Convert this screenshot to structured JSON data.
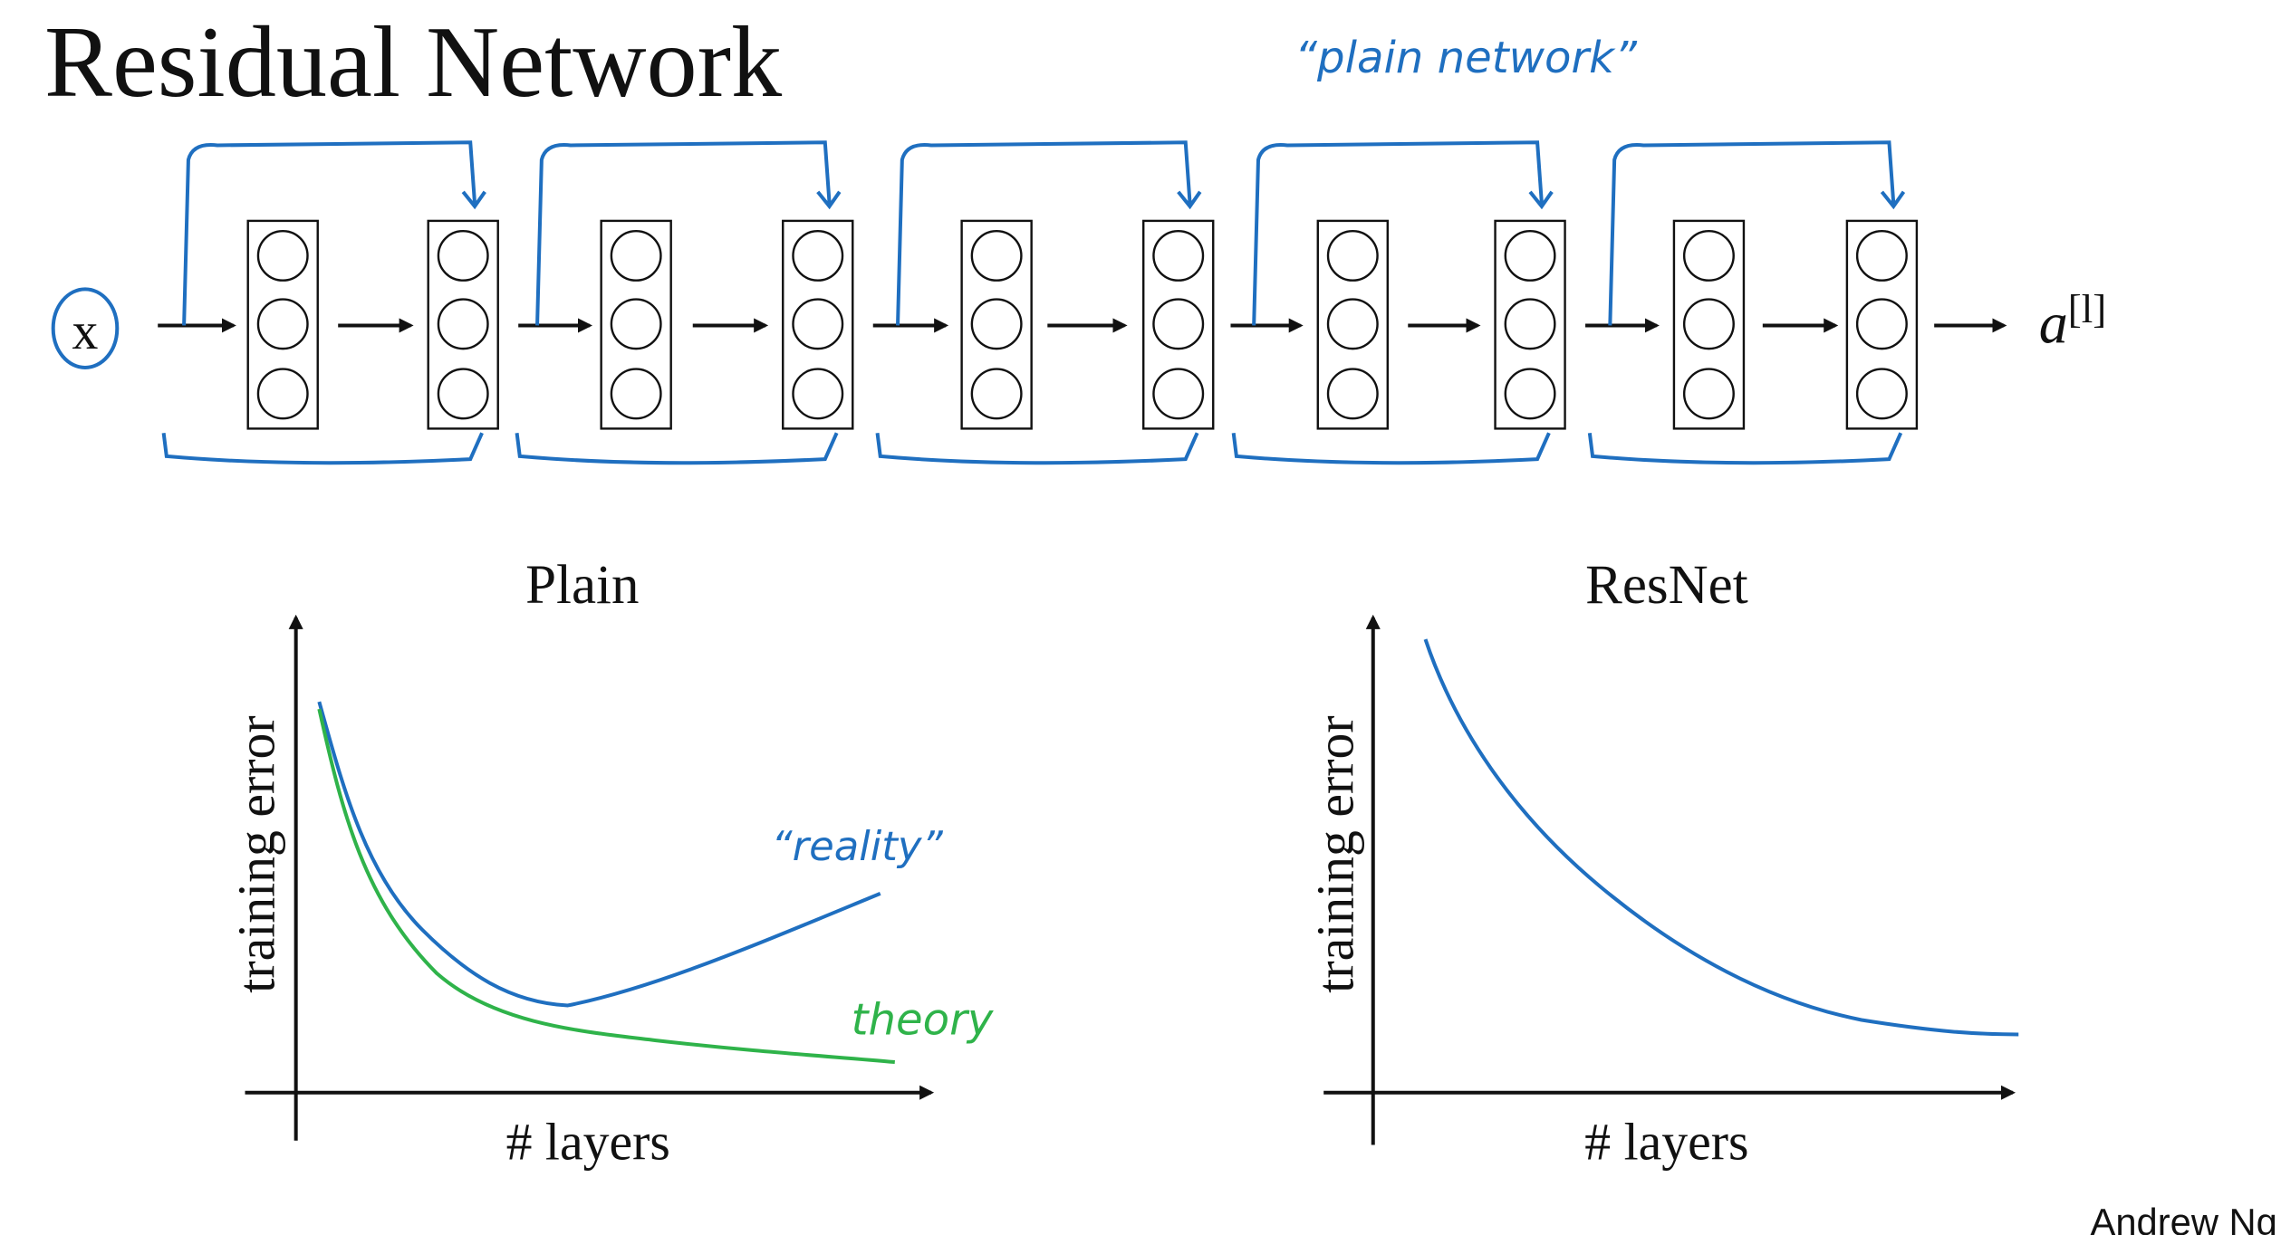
{
  "title": "Residual Network",
  "network": {
    "annotation": "“plain network”",
    "input": "x",
    "output": "a",
    "output_superscript": "[l]"
  },
  "plots": [
    {
      "title": "Plain",
      "y_label": "training error",
      "x_label": "# layers",
      "annotations": [
        "“reality”",
        "theory"
      ]
    },
    {
      "title": "ResNet",
      "y_label": "training error",
      "x_label": "# layers"
    }
  ],
  "footer": "Andrew Ng"
}
